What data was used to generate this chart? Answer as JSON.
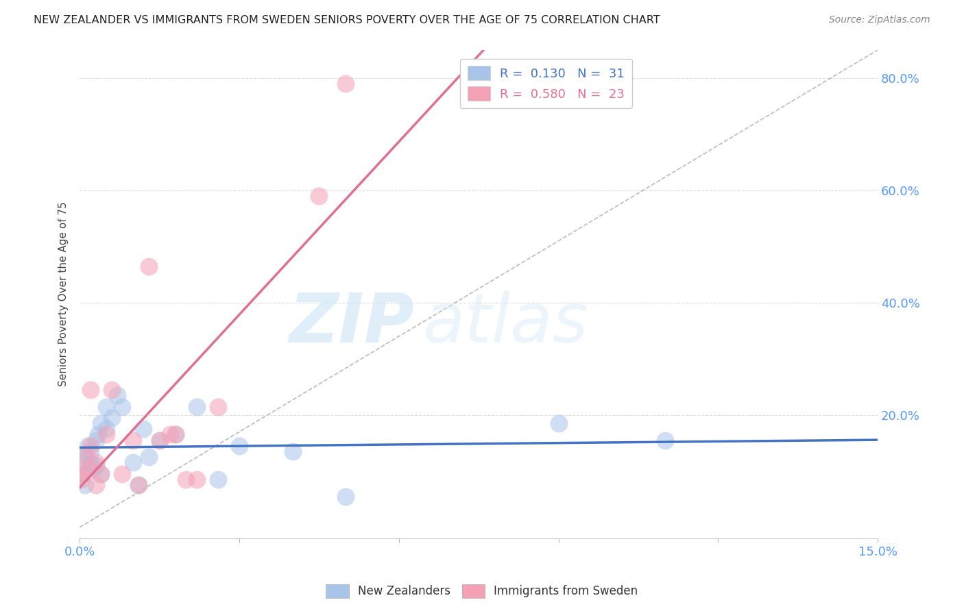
{
  "title": "NEW ZEALANDER VS IMMIGRANTS FROM SWEDEN SENIORS POVERTY OVER THE AGE OF 75 CORRELATION CHART",
  "source": "Source: ZipAtlas.com",
  "ylabel": "Seniors Poverty Over the Age of 75",
  "xlim": [
    0.0,
    0.15
  ],
  "ylim": [
    -0.02,
    0.85
  ],
  "xticks": [
    0.0,
    0.03,
    0.06,
    0.09,
    0.12,
    0.15
  ],
  "yticks": [
    0.0,
    0.2,
    0.4,
    0.6,
    0.8
  ],
  "ytick_labels": [
    "",
    "20.0%",
    "40.0%",
    "60.0%",
    "80.0%"
  ],
  "xtick_labels": [
    "0.0%",
    "",
    "",
    "",
    "",
    "15.0%"
  ],
  "watermark_zip": "ZIP",
  "watermark_atlas": "atlas",
  "nz_x": [
    0.0002,
    0.0005,
    0.001,
    0.001,
    0.0015,
    0.002,
    0.002,
    0.0025,
    0.003,
    0.003,
    0.0035,
    0.004,
    0.004,
    0.005,
    0.005,
    0.006,
    0.007,
    0.008,
    0.01,
    0.011,
    0.012,
    0.013,
    0.015,
    0.018,
    0.022,
    0.026,
    0.03,
    0.04,
    0.05,
    0.09,
    0.11
  ],
  "nz_y": [
    0.115,
    0.095,
    0.13,
    0.075,
    0.145,
    0.115,
    0.135,
    0.105,
    0.155,
    0.11,
    0.165,
    0.185,
    0.095,
    0.215,
    0.175,
    0.195,
    0.235,
    0.215,
    0.115,
    0.075,
    0.175,
    0.125,
    0.155,
    0.165,
    0.215,
    0.085,
    0.145,
    0.135,
    0.055,
    0.185,
    0.155
  ],
  "sw_x": [
    0.0002,
    0.0005,
    0.001,
    0.0015,
    0.002,
    0.002,
    0.003,
    0.003,
    0.004,
    0.005,
    0.006,
    0.008,
    0.01,
    0.011,
    0.013,
    0.015,
    0.017,
    0.018,
    0.02,
    0.022,
    0.026,
    0.045,
    0.05
  ],
  "sw_y": [
    0.085,
    0.095,
    0.125,
    0.105,
    0.245,
    0.145,
    0.115,
    0.075,
    0.095,
    0.165,
    0.245,
    0.095,
    0.155,
    0.075,
    0.465,
    0.155,
    0.165,
    0.165,
    0.085,
    0.085,
    0.215,
    0.59,
    0.79
  ],
  "nz_line_color": "#4472c4",
  "sw_line_color": "#e07090",
  "nz_dot_facecolor": "#a8c4e8",
  "nz_dot_edgecolor": "#7aa8d8",
  "sw_dot_facecolor": "#f4a0b5",
  "sw_dot_edgecolor": "#e07090",
  "diag_color": "#bbbbbb",
  "grid_color": "#dddddd",
  "bg_color": "#ffffff",
  "title_color": "#222222",
  "axis_label_color": "#444444",
  "right_tick_color": "#5599ff",
  "bottom_tick_color": "#5599ff",
  "legend_r1": "R =  0.130   N =  31",
  "legend_r2": "R =  0.580   N =  23",
  "legend_color1": "#4472c4",
  "legend_color2": "#e07090",
  "bottom_label1": "New Zealanders",
  "bottom_label2": "Immigrants from Sweden"
}
